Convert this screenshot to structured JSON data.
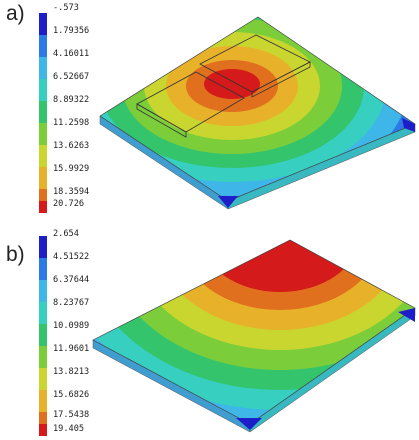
{
  "panels": [
    {
      "label": "a)",
      "legend_values": [
        "-.573",
        "1.79356",
        "4.16011",
        "6.52667",
        "8.89322",
        "11.2598",
        "13.6263",
        "15.9929",
        "18.3594",
        "20.726"
      ],
      "legend_colors": [
        "#1e1ec8",
        "#2a7be6",
        "#3fb6e8",
        "#36cfc0",
        "#34c46c",
        "#7ccd3a",
        "#c9d630",
        "#e7b12a",
        "#e0701e",
        "#d41a1a"
      ]
    },
    {
      "label": "b)",
      "legend_values": [
        "2.654",
        "4.51522",
        "6.37644",
        "8.23767",
        "10.0989",
        "11.9601",
        "13.8213",
        "15.6826",
        "17.5438",
        "19.405"
      ],
      "legend_colors": [
        "#1e1ec8",
        "#2a7be6",
        "#3fb6e8",
        "#36cfc0",
        "#34c46c",
        "#7ccd3a",
        "#c9d630",
        "#e7b12a",
        "#e0701e",
        "#d41a1a"
      ]
    }
  ]
}
